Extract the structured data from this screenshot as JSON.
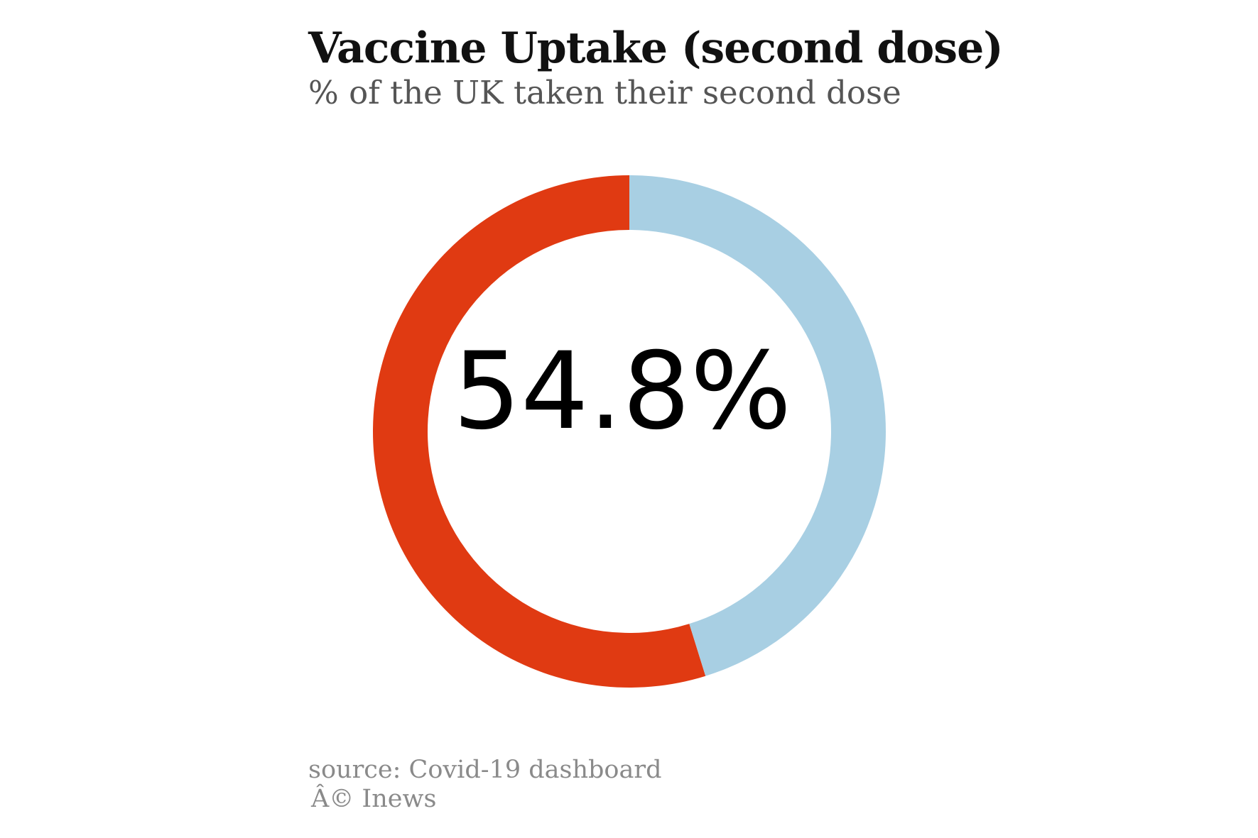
{
  "header": {
    "title": "Vaccine Uptake (second dose)",
    "subtitle": "% of the UK taken their second dose"
  },
  "chart_data": {
    "type": "pie",
    "style": "donut",
    "series": [
      {
        "value": 54.8,
        "color": "#e03a12"
      },
      {
        "value": 45.2,
        "color": "#a8cfe3"
      }
    ],
    "center_label": "54.8%"
  },
  "footer": {
    "source": "source: Covid-19 dashboard",
    "credit": "Â© Inews"
  }
}
